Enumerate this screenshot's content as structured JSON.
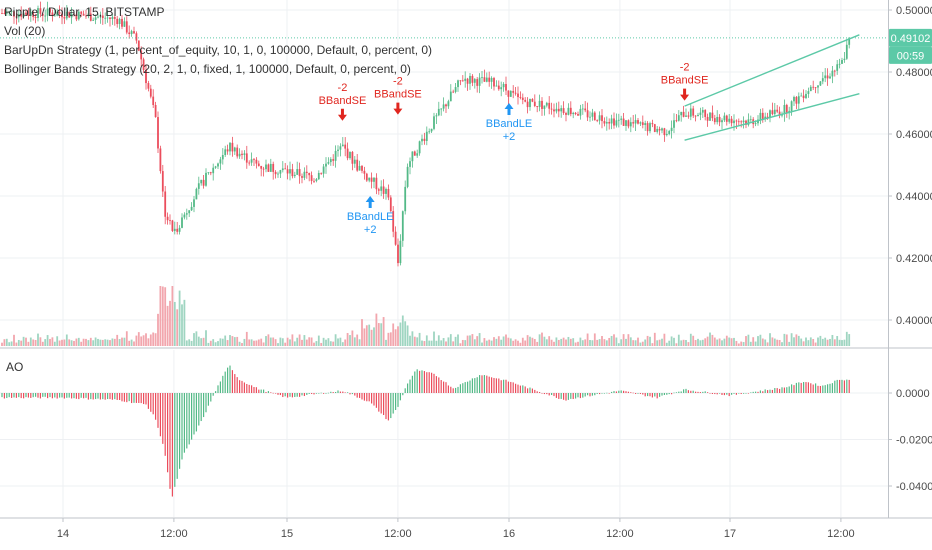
{
  "legend": {
    "main": "Ripple / Dollar, 15, BITSTAMP",
    "vol": "Vol (20)",
    "strategy1": "BarUpDn Strategy (1, percent_of_equity, 10, 1, 0, 100000, Default, 0, percent, 0)",
    "strategy2": "Bollinger Bands Strategy (20, 2, 1, 0, fixed, 1, 100000, Default, 0, percent, 0)"
  },
  "ao_label": "AO",
  "price_badge": {
    "price": "0.49102",
    "countdown": "00:59"
  },
  "colors": {
    "up": "#53b987",
    "down": "#eb4d5c",
    "vol_up": "#9fd5c1",
    "vol_down": "#f2a6ad",
    "short_signal": "#e0261f",
    "long_signal": "#2196f3",
    "trendline": "#5cc9a7",
    "price_badge": "#5cc9a7",
    "grid": "#eef0f3",
    "axis_border": "#bfc3c9"
  },
  "chart_data": [
    {
      "type": "candlestick",
      "title": "Ripple / Dollar, 15, BITSTAMP",
      "x_ticks": [
        "14",
        "12:00",
        "15",
        "12:00",
        "16",
        "12:00",
        "17",
        "12:00"
      ],
      "y_ticks": [
        "0.50000",
        "0.48000",
        "0.46000",
        "0.44000",
        "0.42000",
        "0.40000"
      ],
      "ylim": [
        0.395,
        0.505
      ],
      "approx_close_path": [
        {
          "x": "14 00:00",
          "y": 0.499
        },
        {
          "x": "14 06:00",
          "y": 0.497
        },
        {
          "x": "14 08:00",
          "y": 0.49
        },
        {
          "x": "14 10:00",
          "y": 0.465
        },
        {
          "x": "14 11:00",
          "y": 0.435
        },
        {
          "x": "14 12:00",
          "y": 0.428
        },
        {
          "x": "14 15:00",
          "y": 0.444
        },
        {
          "x": "14 18:00",
          "y": 0.456
        },
        {
          "x": "14 21:00",
          "y": 0.45
        },
        {
          "x": "15 03:00",
          "y": 0.446
        },
        {
          "x": "15 06:00",
          "y": 0.456
        },
        {
          "x": "15 08:00",
          "y": 0.448
        },
        {
          "x": "15 11:00",
          "y": 0.44
        },
        {
          "x": "15 12:00",
          "y": 0.418
        },
        {
          "x": "15 13:00",
          "y": 0.45
        },
        {
          "x": "15 15:00",
          "y": 0.46
        },
        {
          "x": "15 19:00",
          "y": 0.478
        },
        {
          "x": "15 23:00",
          "y": 0.476
        },
        {
          "x": "16 01:00",
          "y": 0.471
        },
        {
          "x": "16 06:00",
          "y": 0.468
        },
        {
          "x": "16 12:00",
          "y": 0.464
        },
        {
          "x": "16 17:00",
          "y": 0.461
        },
        {
          "x": "16 19:00",
          "y": 0.467
        },
        {
          "x": "17 02:00",
          "y": 0.464
        },
        {
          "x": "17 06:00",
          "y": 0.468
        },
        {
          "x": "17 09:00",
          "y": 0.476
        },
        {
          "x": "17 12:00",
          "y": 0.482
        },
        {
          "x": "17 13:00",
          "y": 0.491
        }
      ],
      "last_price": 0.49102,
      "signals": [
        {
          "x": "15 06:00",
          "y": 0.462,
          "type": "short",
          "label": "BBandSE",
          "qty": "-2"
        },
        {
          "x": "15 12:00",
          "y": 0.464,
          "type": "short",
          "label": "BBandSE",
          "qty": "-2"
        },
        {
          "x": "16 19:00",
          "y": 0.4685,
          "type": "short",
          "label": "BBandSE",
          "qty": "-2"
        },
        {
          "x": "15 09:00",
          "y": 0.44,
          "type": "long",
          "label": "BBandLE",
          "qty": "+2"
        },
        {
          "x": "16 00:00",
          "y": 0.47,
          "type": "long",
          "label": "BBandLE",
          "qty": "+2"
        }
      ],
      "trendlines": [
        {
          "from": {
            "x": "16 19:00",
            "y": 0.469
          },
          "to": {
            "x": "17 14:00",
            "y": 0.492
          }
        },
        {
          "from": {
            "x": "16 19:00",
            "y": 0.458
          },
          "to": {
            "x": "17 14:00",
            "y": 0.473
          }
        }
      ]
    },
    {
      "type": "bar",
      "title": "AO",
      "y_ticks": [
        "0.0000",
        "-0.0200",
        "-0.0400"
      ],
      "ylim": [
        -0.0475,
        0.0115
      ],
      "series": [
        {
          "x": [
            "14 00:00",
            "14 06:00",
            "14 09:00",
            "14 10:00",
            "14 11:00",
            "14 11:45",
            "14 13:00",
            "14 15:00",
            "14 17:00",
            "14 18:00",
            "14 19:00",
            "14 21:00",
            "15 00:00",
            "15 06:00",
            "15 09:00",
            "15 11:00",
            "15 12:00",
            "15 13:00",
            "15 14:00",
            "15 16:00",
            "15 18:00",
            "15 21:00",
            "16 00:00",
            "16 06:00",
            "16 12:00",
            "16 16:00",
            "16 19:00",
            "17 00:00",
            "17 06:00",
            "17 08:00",
            "17 10:00",
            "17 12:00",
            "17 13:00"
          ],
          "values": [
            -0.002,
            -0.003,
            -0.005,
            -0.011,
            -0.025,
            -0.046,
            -0.027,
            -0.012,
            0.005,
            0.012,
            0.006,
            0.002,
            -0.002,
            0.001,
            -0.004,
            -0.012,
            -0.006,
            0.004,
            0.01,
            0.008,
            0.002,
            0.008,
            0.005,
            -0.003,
            0.001,
            -0.002,
            0.0015,
            -0.001,
            0.0025,
            0.005,
            0.003,
            0.006,
            0.0055
          ]
        }
      ]
    }
  ]
}
